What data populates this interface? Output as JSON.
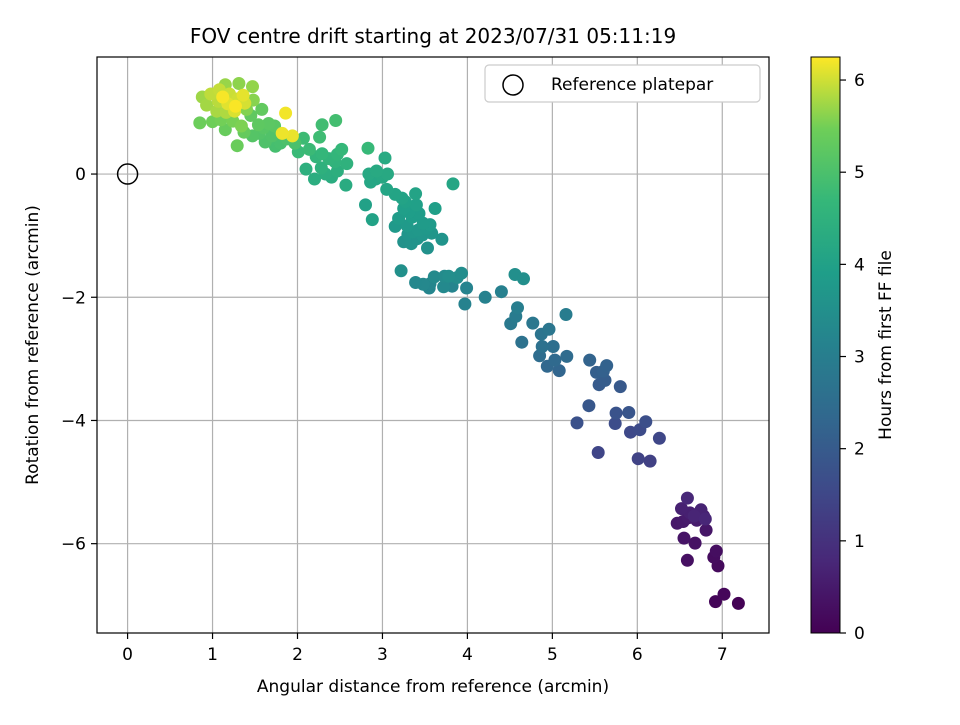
{
  "chart_data": {
    "type": "scatter",
    "title": "FOV centre drift starting at 2023/07/31 05:11:19",
    "xlabel": "Angular distance from reference (arcmin)",
    "ylabel": "Rotation from reference (arcmin)",
    "colorbar_label": "Hours from first FF file",
    "colormap": "viridis",
    "xlim": [
      -0.36,
      7.55
    ],
    "ylim": [
      -7.45,
      1.9
    ],
    "clim": [
      0,
      6.25
    ],
    "xticks": [
      "0",
      "1",
      "2",
      "3",
      "4",
      "5",
      "6",
      "7"
    ],
    "yticks": [
      "−6",
      "−4",
      "−2",
      "0"
    ],
    "colorbar_ticks": [
      "0",
      "1",
      "2",
      "3",
      "4",
      "5",
      "6"
    ],
    "grid": true,
    "legend": {
      "position": "top-right",
      "entries": [
        "Reference platepar"
      ]
    },
    "reference_point": {
      "x": 0,
      "y": 0
    },
    "points": [
      [
        7.19,
        -6.97,
        0.02
      ],
      [
        6.92,
        -6.94,
        0.08
      ],
      [
        7.02,
        -6.82,
        0.12
      ],
      [
        6.95,
        -6.36,
        0.18
      ],
      [
        6.9,
        -6.22,
        0.22
      ],
      [
        6.93,
        -6.12,
        0.26
      ],
      [
        6.59,
        -6.27,
        0.3
      ],
      [
        6.68,
        -5.99,
        0.34
      ],
      [
        6.55,
        -5.91,
        0.38
      ],
      [
        6.81,
        -5.78,
        0.42
      ],
      [
        6.47,
        -5.67,
        0.45
      ],
      [
        6.54,
        -5.64,
        0.48
      ],
      [
        6.6,
        -5.58,
        0.52
      ],
      [
        6.7,
        -5.62,
        0.55
      ],
      [
        6.78,
        -5.55,
        0.58
      ],
      [
        6.62,
        -5.5,
        0.62
      ],
      [
        6.52,
        -5.43,
        0.65
      ],
      [
        6.75,
        -5.45,
        0.68
      ],
      [
        6.67,
        -5.55,
        0.72
      ],
      [
        6.8,
        -5.6,
        0.75
      ],
      [
        6.59,
        -5.26,
        0.78
      ],
      [
        6.15,
        -4.66,
        1.35
      ],
      [
        6.01,
        -4.62,
        1.4
      ],
      [
        5.54,
        -4.52,
        1.45
      ],
      [
        6.26,
        -4.29,
        1.5
      ],
      [
        5.92,
        -4.19,
        1.55
      ],
      [
        6.03,
        -4.15,
        1.6
      ],
      [
        5.74,
        -4.05,
        1.65
      ],
      [
        6.1,
        -4.02,
        1.7
      ],
      [
        5.29,
        -4.04,
        1.75
      ],
      [
        5.75,
        -3.88,
        1.8
      ],
      [
        5.9,
        -3.87,
        1.85
      ],
      [
        5.43,
        -3.76,
        1.9
      ],
      [
        5.8,
        -3.45,
        1.95
      ],
      [
        5.55,
        -3.42,
        2.0
      ],
      [
        5.62,
        -3.35,
        2.05
      ],
      [
        5.52,
        -3.22,
        2.1
      ],
      [
        5.6,
        -3.2,
        2.15
      ],
      [
        5.64,
        -3.11,
        2.2
      ],
      [
        5.44,
        -3.02,
        2.25
      ],
      [
        5.08,
        -3.19,
        2.3
      ],
      [
        4.94,
        -3.12,
        2.35
      ],
      [
        5.03,
        -3.02,
        2.4
      ],
      [
        5.17,
        -2.96,
        2.45
      ],
      [
        4.85,
        -2.95,
        2.5
      ],
      [
        5.01,
        -2.8,
        2.55
      ],
      [
        4.88,
        -2.8,
        2.6
      ],
      [
        4.64,
        -2.73,
        2.65
      ],
      [
        4.87,
        -2.6,
        2.7
      ],
      [
        4.96,
        -2.52,
        2.75
      ],
      [
        4.77,
        -2.42,
        2.8
      ],
      [
        4.51,
        -2.43,
        2.85
      ],
      [
        4.57,
        -2.31,
        2.9
      ],
      [
        5.16,
        -2.28,
        2.95
      ],
      [
        4.59,
        -2.17,
        3.0
      ],
      [
        4.4,
        -1.91,
        3.05
      ],
      [
        4.21,
        -2.0,
        3.1
      ],
      [
        3.97,
        -2.11,
        3.12
      ],
      [
        3.99,
        -1.85,
        3.15
      ],
      [
        3.82,
        -1.82,
        3.18
      ],
      [
        3.55,
        -1.85,
        3.22
      ],
      [
        3.56,
        -1.78,
        3.25
      ],
      [
        3.48,
        -1.79,
        3.28
      ],
      [
        3.39,
        -1.76,
        3.3
      ],
      [
        3.72,
        -1.83,
        3.33
      ],
      [
        3.61,
        -1.67,
        3.36
      ],
      [
        3.73,
        -1.66,
        3.38
      ],
      [
        3.88,
        -1.68,
        3.4
      ],
      [
        3.93,
        -1.61,
        3.42
      ],
      [
        3.78,
        -1.66,
        3.45
      ],
      [
        4.56,
        -1.63,
        3.48
      ],
      [
        4.66,
        -1.7,
        3.5
      ],
      [
        3.22,
        -1.57,
        3.52
      ],
      [
        3.53,
        -1.2,
        3.55
      ],
      [
        3.25,
        -1.1,
        3.57
      ],
      [
        3.34,
        -1.13,
        3.59
      ],
      [
        3.41,
        -1.05,
        3.61
      ],
      [
        3.7,
        -1.06,
        3.63
      ],
      [
        3.3,
        -0.98,
        3.65
      ],
      [
        3.47,
        -0.99,
        3.67
      ],
      [
        3.58,
        -0.96,
        3.69
      ],
      [
        3.36,
        -0.94,
        3.71
      ],
      [
        3.42,
        -0.91,
        3.73
      ],
      [
        3.52,
        -0.88,
        3.75
      ],
      [
        3.15,
        -0.85,
        3.77
      ],
      [
        3.29,
        -0.84,
        3.79
      ],
      [
        3.56,
        -0.82,
        3.81
      ],
      [
        3.48,
        -0.8,
        3.83
      ],
      [
        3.19,
        -0.72,
        3.85
      ],
      [
        3.35,
        -0.7,
        3.87
      ],
      [
        3.43,
        -0.64,
        3.89
      ],
      [
        3.31,
        -0.62,
        3.91
      ],
      [
        3.25,
        -0.56,
        3.93
      ],
      [
        3.62,
        -0.56,
        3.95
      ],
      [
        3.4,
        -0.5,
        3.97
      ],
      [
        3.27,
        -0.45,
        3.99
      ],
      [
        2.8,
        -0.5,
        4.01
      ],
      [
        2.88,
        -0.74,
        4.03
      ],
      [
        3.23,
        -0.39,
        4.05
      ],
      [
        3.39,
        -0.32,
        4.07
      ],
      [
        3.15,
        -0.33,
        4.09
      ],
      [
        3.05,
        -0.25,
        4.11
      ],
      [
        3.83,
        -0.16,
        4.13
      ],
      [
        2.86,
        -0.13,
        4.15
      ],
      [
        2.92,
        -0.08,
        4.17
      ],
      [
        3.0,
        -0.05,
        4.19
      ],
      [
        2.84,
        0.0,
        4.21
      ],
      [
        3.06,
        0.0,
        4.23
      ],
      [
        2.93,
        0.05,
        4.25
      ],
      [
        3.03,
        0.26,
        4.27
      ],
      [
        2.57,
        -0.18,
        4.3
      ],
      [
        2.4,
        -0.05,
        4.33
      ],
      [
        2.2,
        -0.08,
        4.36
      ],
      [
        2.33,
        0.0,
        4.39
      ],
      [
        2.47,
        0.05,
        4.42
      ],
      [
        2.1,
        0.08,
        4.45
      ],
      [
        2.28,
        0.1,
        4.48
      ],
      [
        2.58,
        0.17,
        4.51
      ],
      [
        2.44,
        0.2,
        4.54
      ],
      [
        2.37,
        0.25,
        4.57
      ],
      [
        2.22,
        0.28,
        4.6
      ],
      [
        2.47,
        0.32,
        4.63
      ],
      [
        2.29,
        0.33,
        4.65
      ],
      [
        2.52,
        0.4,
        4.68
      ],
      [
        2.83,
        0.42,
        4.71
      ],
      [
        2.01,
        0.36,
        4.74
      ],
      [
        2.14,
        0.4,
        4.77
      ],
      [
        2.07,
        0.58,
        4.8
      ],
      [
        2.26,
        0.6,
        4.83
      ],
      [
        2.29,
        0.8,
        4.86
      ],
      [
        2.45,
        0.87,
        4.89
      ],
      [
        1.74,
        0.45,
        4.92
      ],
      [
        1.8,
        0.5,
        4.95
      ],
      [
        1.97,
        0.5,
        4.98
      ],
      [
        1.88,
        0.57,
        5.01
      ],
      [
        1.62,
        0.52,
        5.04
      ],
      [
        1.7,
        0.62,
        5.07
      ],
      [
        1.55,
        0.66,
        5.1
      ],
      [
        1.47,
        0.62,
        5.13
      ],
      [
        1.6,
        0.75,
        5.16
      ],
      [
        1.73,
        0.78,
        5.19
      ],
      [
        1.66,
        0.82,
        5.22
      ],
      [
        1.54,
        0.8,
        5.25
      ],
      [
        1.45,
        0.95,
        5.28
      ],
      [
        1.58,
        1.05,
        5.31
      ],
      [
        1.37,
        0.68,
        5.34
      ],
      [
        1.15,
        0.72,
        5.37
      ],
      [
        1.29,
        0.46,
        5.4
      ],
      [
        0.85,
        0.83,
        5.43
      ],
      [
        1.0,
        0.85,
        5.46
      ],
      [
        1.1,
        0.88,
        5.49
      ],
      [
        1.24,
        0.86,
        5.52
      ],
      [
        1.34,
        0.78,
        5.55
      ],
      [
        1.4,
        1.05,
        5.58
      ],
      [
        1.48,
        1.2,
        5.61
      ],
      [
        1.31,
        1.47,
        5.64
      ],
      [
        1.47,
        1.42,
        5.67
      ],
      [
        1.15,
        1.45,
        5.7
      ],
      [
        0.88,
        1.25,
        5.73
      ],
      [
        0.93,
        1.12,
        5.76
      ],
      [
        1.05,
        1.02,
        5.79
      ],
      [
        1.16,
        1.0,
        5.82
      ],
      [
        1.24,
        1.08,
        5.85
      ],
      [
        1.07,
        1.18,
        5.88
      ],
      [
        0.98,
        1.3,
        5.91
      ],
      [
        1.08,
        1.37,
        5.94
      ],
      [
        1.2,
        1.3,
        5.97
      ],
      [
        1.3,
        1.22,
        6.0
      ],
      [
        1.38,
        1.15,
        6.03
      ],
      [
        1.26,
        1.02,
        6.06
      ],
      [
        1.18,
        1.14,
        6.09
      ],
      [
        1.36,
        1.28,
        6.12
      ],
      [
        1.94,
        0.62,
        6.14
      ],
      [
        1.82,
        0.66,
        6.16
      ],
      [
        1.86,
        0.99,
        6.19
      ],
      [
        1.12,
        1.25,
        6.21
      ],
      [
        1.27,
        1.1,
        6.23
      ]
    ]
  }
}
